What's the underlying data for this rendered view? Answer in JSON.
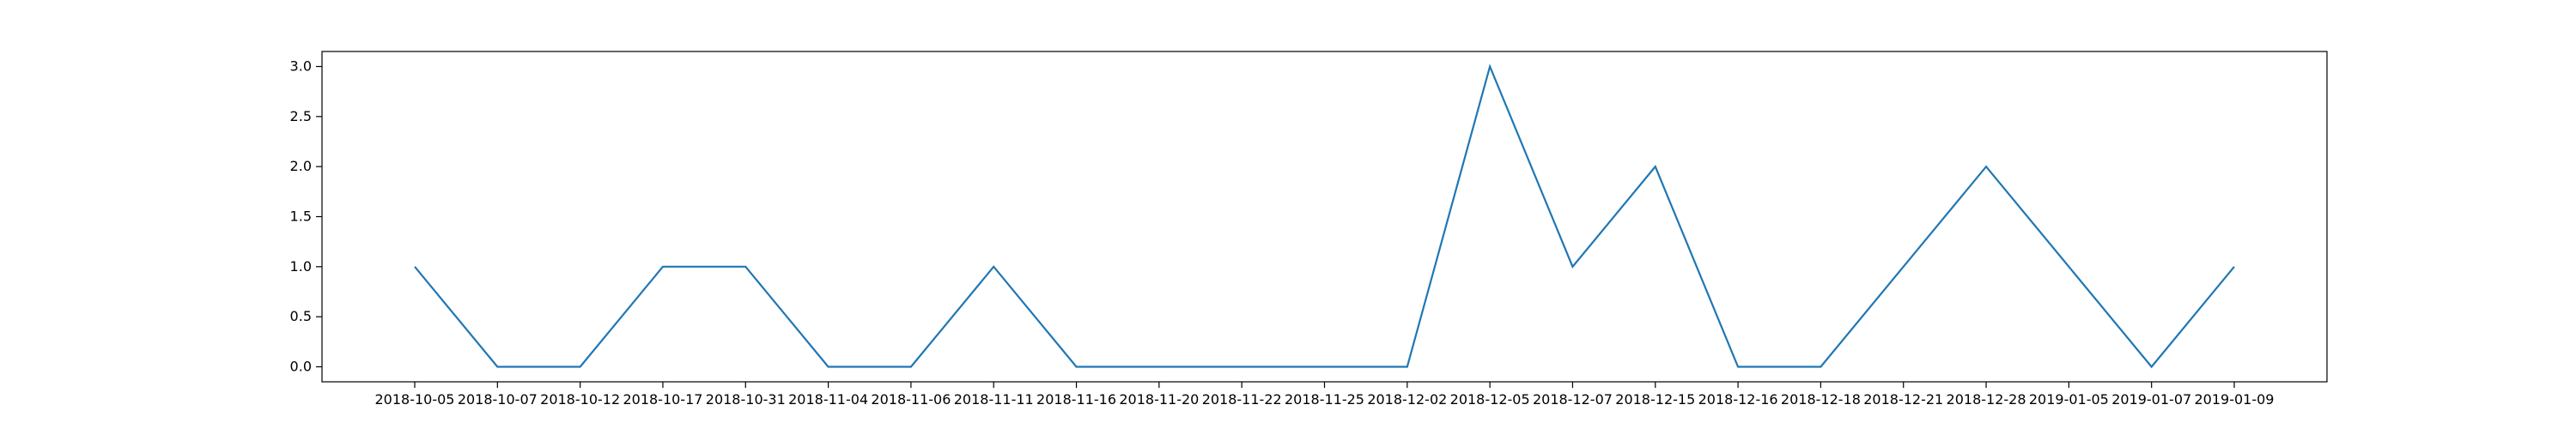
{
  "chart_data": {
    "type": "line",
    "title": "",
    "xlabel": "",
    "ylabel": "",
    "categories": [
      "2018-10-05",
      "2018-10-07",
      "2018-10-12",
      "2018-10-17",
      "2018-10-31",
      "2018-11-04",
      "2018-11-06",
      "2018-11-11",
      "2018-11-16",
      "2018-11-20",
      "2018-11-22",
      "2018-11-25",
      "2018-12-02",
      "2018-12-05",
      "2018-12-07",
      "2018-12-15",
      "2018-12-16",
      "2018-12-18",
      "2018-12-21",
      "2018-12-28",
      "2019-01-05",
      "2019-01-07",
      "2019-01-09"
    ],
    "series": [
      {
        "values": [
          1,
          0,
          0,
          1,
          1,
          0,
          0,
          1,
          0,
          0,
          0,
          0,
          0,
          3,
          1,
          2,
          0,
          0,
          1,
          2,
          1,
          0,
          1
        ],
        "color": "#1f77b4"
      }
    ],
    "ylim": [
      -0.15,
      3.15
    ],
    "yticks": [
      0.0,
      0.5,
      1.0,
      1.5,
      2.0,
      2.5,
      3.0
    ],
    "ytick_labels": [
      "0.0",
      "0.5",
      "1.0",
      "1.5",
      "2.0",
      "2.5",
      "3.0"
    ],
    "grid": false,
    "legend": false
  }
}
